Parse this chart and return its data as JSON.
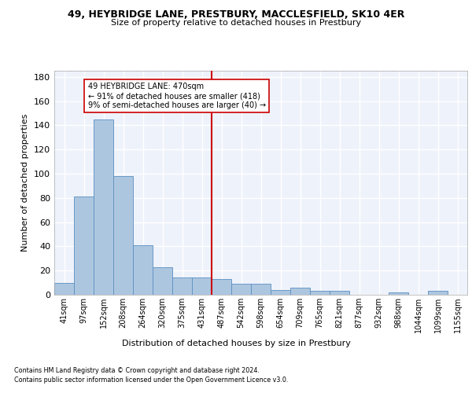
{
  "title1": "49, HEYBRIDGE LANE, PRESTBURY, MACCLESFIELD, SK10 4ER",
  "title2": "Size of property relative to detached houses in Prestbury",
  "xlabel": "Distribution of detached houses by size in Prestbury",
  "ylabel": "Number of detached properties",
  "categories": [
    "41sqm",
    "97sqm",
    "152sqm",
    "208sqm",
    "264sqm",
    "320sqm",
    "375sqm",
    "431sqm",
    "487sqm",
    "542sqm",
    "598sqm",
    "654sqm",
    "709sqm",
    "765sqm",
    "821sqm",
    "877sqm",
    "932sqm",
    "988sqm",
    "1044sqm",
    "1099sqm",
    "1155sqm"
  ],
  "values": [
    10,
    81,
    145,
    98,
    41,
    23,
    14,
    14,
    13,
    9,
    9,
    4,
    6,
    3,
    3,
    0,
    0,
    2,
    0,
    3,
    0
  ],
  "bar_color": "#adc6e0",
  "bar_edge_color": "#5a8fc0",
  "vline_x": 8,
  "vline_color": "#cc0000",
  "annotation_text": "49 HEYBRIDGE LANE: 470sqm\n← 91% of detached houses are smaller (418)\n9% of semi-detached houses are larger (40) →",
  "annotation_box_color": "#cc0000",
  "ylim": [
    0,
    185
  ],
  "yticks": [
    0,
    20,
    40,
    60,
    80,
    100,
    120,
    140,
    160,
    180
  ],
  "background_color": "#eef2fb",
  "grid_color": "#ffffff",
  "footer_line1": "Contains HM Land Registry data © Crown copyright and database right 2024.",
  "footer_line2": "Contains public sector information licensed under the Open Government Licence v3.0."
}
